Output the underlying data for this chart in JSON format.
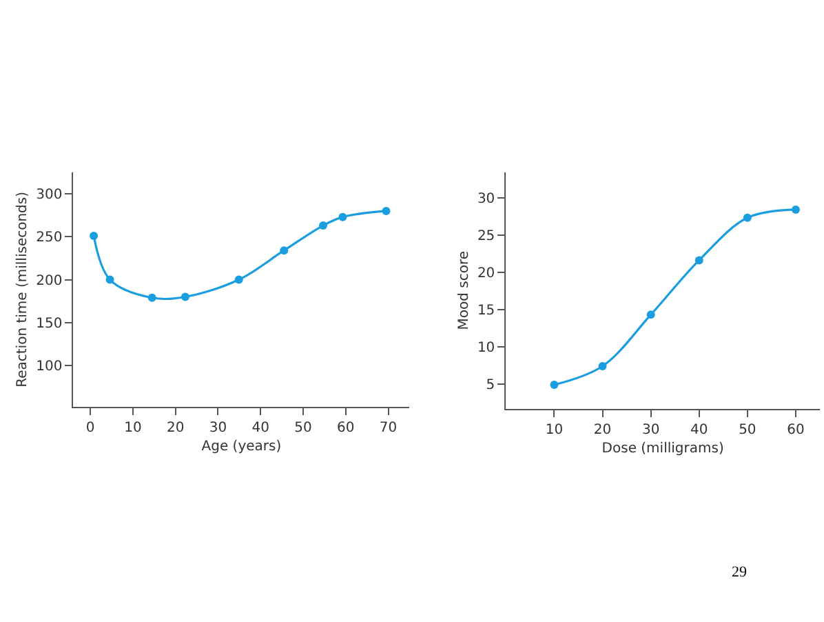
{
  "chart_data": [
    {
      "type": "line",
      "xlabel": "Age (years)",
      "ylabel": "Reaction time (milliseconds)",
      "x": [
        0.8,
        4.6,
        14.5,
        22.3,
        34.9,
        45.5,
        54.7,
        59.3,
        69.5
      ],
      "series": [
        {
          "color": "#1a9ee0",
          "values": [
            251,
            200,
            179,
            180,
            200,
            234,
            263,
            273,
            280
          ]
        }
      ],
      "xlim": [
        -4,
        75
      ],
      "ylim": [
        52,
        325
      ],
      "xticks": [
        0,
        10,
        20,
        30,
        40,
        50,
        60,
        70
      ],
      "yticks": [
        100,
        150,
        200,
        250,
        300
      ],
      "marker": "circle",
      "line_style": "solid"
    },
    {
      "type": "line",
      "xlabel": "Dose (milligrams)",
      "ylabel": "Mood score",
      "x": [
        10,
        20,
        30,
        40,
        50,
        60
      ],
      "series": [
        {
          "color": "#1a9ee0",
          "values": [
            4.9,
            7.4,
            14.3,
            21.6,
            27.3,
            28.4
          ]
        }
      ],
      "xlim": [
        0,
        65
      ],
      "ylim": [
        1.7,
        33.4
      ],
      "xticks": [
        10,
        20,
        30,
        40,
        50,
        60
      ],
      "yticks": [
        5,
        10,
        15,
        20,
        25,
        30
      ],
      "marker": "circle",
      "line_style": "solid",
      "annotations": [
        "29"
      ]
    }
  ]
}
